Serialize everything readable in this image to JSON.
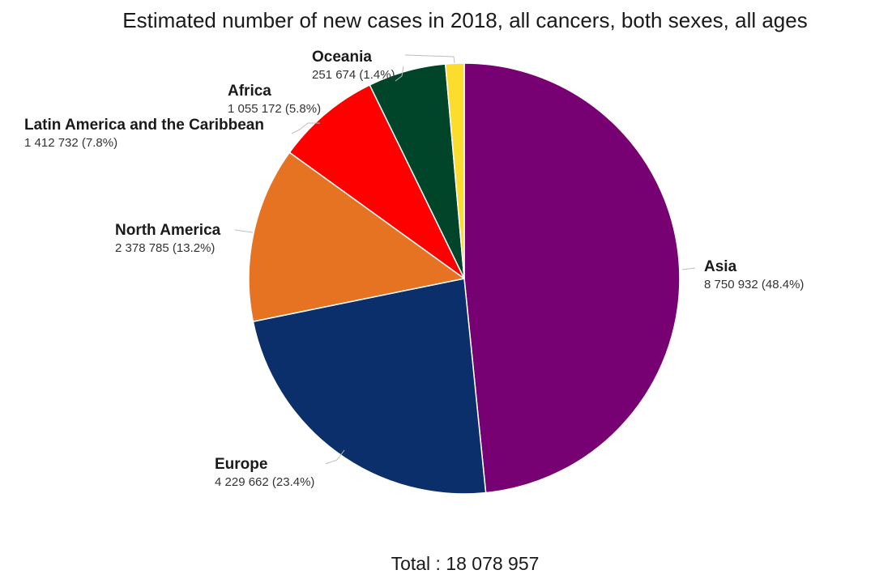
{
  "chart_data": {
    "type": "pie",
    "title": "Estimated number of new cases in 2018, all cancers, both sexes, all ages",
    "total_label": "Total : 18 078 957",
    "total": 18078957,
    "start": "12 o'clock",
    "direction": "clockwise",
    "slices": [
      {
        "name": "Asia",
        "value": 8750932,
        "value_label": "8 750 932",
        "percent": 48.4,
        "percent_label": "(48.4%)",
        "color": "#770073"
      },
      {
        "name": "Europe",
        "value": 4229662,
        "value_label": "4 229 662",
        "percent": 23.4,
        "percent_label": "(23.4%)",
        "color": "#0b2f6b"
      },
      {
        "name": "North America",
        "value": 2378785,
        "value_label": "2 378 785",
        "percent": 13.2,
        "percent_label": "(13.2%)",
        "color": "#e57322"
      },
      {
        "name": "Latin America and the Caribbean",
        "value": 1412732,
        "value_label": "1 412 732",
        "percent": 7.8,
        "percent_label": "(7.8%)",
        "color": "#ff0000"
      },
      {
        "name": "Africa",
        "value": 1055172,
        "value_label": "1 055 172",
        "percent": 5.8,
        "percent_label": "(5.8%)",
        "color": "#00452a"
      },
      {
        "name": "Oceania",
        "value": 251674,
        "value_label": "251 674",
        "percent": 1.4,
        "percent_label": "(1.4%)",
        "color": "#fcdc2d"
      }
    ]
  }
}
